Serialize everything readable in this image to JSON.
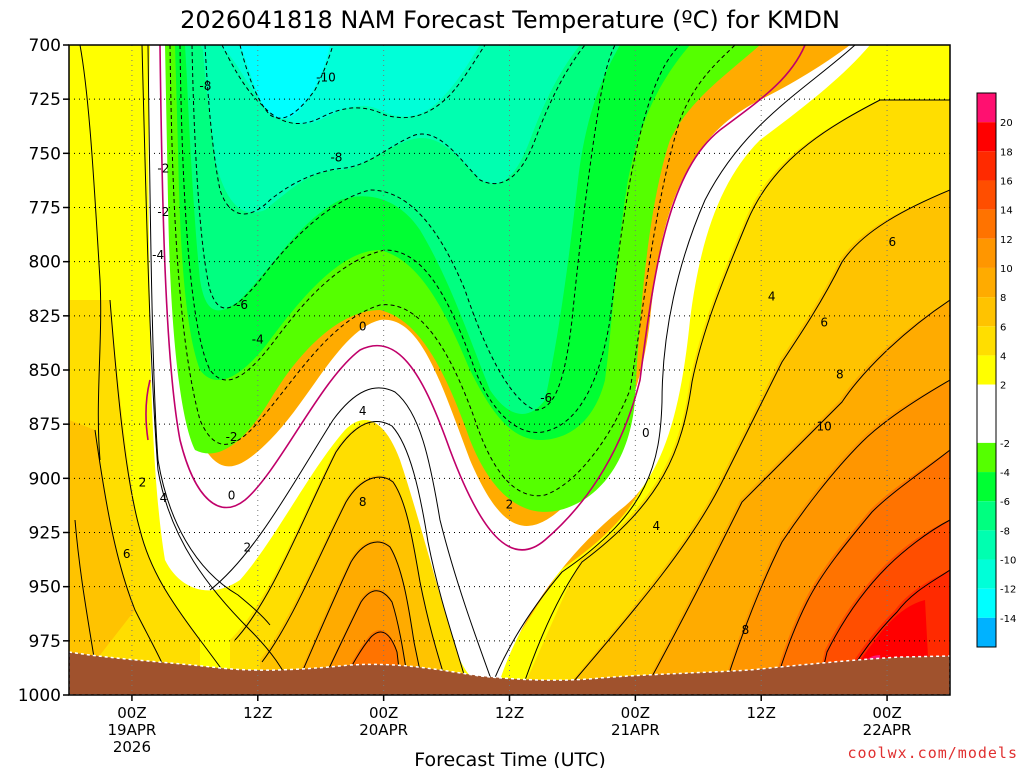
{
  "title": "2026041818 NAM Forecast Temperature (ºC) for KMDN",
  "credit": "coolwx.com/models",
  "chart_data": {
    "type": "heatmap",
    "title": "2026041818 NAM Forecast Temperature (ºC) for KMDN",
    "xlabel": "Forecast Time (UTC)",
    "ylabel": "",
    "x_range_hours": [
      0,
      84
    ],
    "y_range_hpa": [
      1000,
      700
    ],
    "y_ticks": [
      "700",
      "725",
      "750",
      "775",
      "800",
      "825",
      "850",
      "875",
      "900",
      "925",
      "950",
      "975",
      "1000"
    ],
    "x_ticks": [
      {
        "hour": 6,
        "lines": [
          "00Z",
          "19APR",
          "2026"
        ]
      },
      {
        "hour": 18,
        "lines": [
          "12Z"
        ]
      },
      {
        "hour": 30,
        "lines": [
          "00Z",
          "20APR"
        ]
      },
      {
        "hour": 42,
        "lines": [
          "12Z"
        ]
      },
      {
        "hour": 54,
        "lines": [
          "00Z",
          "21APR"
        ]
      },
      {
        "hour": 66,
        "lines": [
          "12Z"
        ]
      },
      {
        "hour": 78,
        "lines": [
          "00Z",
          "22APR"
        ]
      }
    ],
    "grid": true,
    "colorbar": {
      "position": "right",
      "labels": [
        "20",
        "18",
        "16",
        "14",
        "12",
        "10",
        "8",
        "6",
        "4",
        "2",
        "-2",
        "-4",
        "-6",
        "-8",
        "-10",
        "-12",
        "-14"
      ],
      "bands": [
        {
          "min": 20,
          "max": 22,
          "color": "#ff1070"
        },
        {
          "min": 18,
          "max": 20,
          "color": "#ff0000"
        },
        {
          "min": 16,
          "max": 18,
          "color": "#ff2a00"
        },
        {
          "min": 14,
          "max": 16,
          "color": "#ff4e00"
        },
        {
          "min": 12,
          "max": 14,
          "color": "#ff7300"
        },
        {
          "min": 10,
          "max": 12,
          "color": "#ff9600"
        },
        {
          "min": 8,
          "max": 10,
          "color": "#ffab00"
        },
        {
          "min": 6,
          "max": 8,
          "color": "#ffc300"
        },
        {
          "min": 4,
          "max": 6,
          "color": "#ffde00"
        },
        {
          "min": 2,
          "max": 4,
          "color": "#ffff00"
        },
        {
          "min": -2,
          "max": 2,
          "color": "#ffffff"
        },
        {
          "min": -4,
          "max": -2,
          "color": "#55ff00"
        },
        {
          "min": -6,
          "max": -4,
          "color": "#00ff33"
        },
        {
          "min": -8,
          "max": -6,
          "color": "#00ff80"
        },
        {
          "min": -10,
          "max": -8,
          "color": "#00ffb0"
        },
        {
          "min": -12,
          "max": -10,
          "color": "#00ffd8"
        },
        {
          "min": -14,
          "max": -12,
          "color": "#00ffff"
        },
        {
          "min": -16,
          "max": -14,
          "color": "#00b2ff"
        }
      ]
    },
    "contour_labels": [
      {
        "text": "-10",
        "hour": 24.5,
        "hpa": 715
      },
      {
        "text": "-8",
        "hour": 13.0,
        "hpa": 719
      },
      {
        "text": "-8",
        "hour": 25.5,
        "hpa": 752
      },
      {
        "text": "-2",
        "hour": 9.0,
        "hpa": 757
      },
      {
        "text": "-2",
        "hour": 9.0,
        "hpa": 777
      },
      {
        "text": "-4",
        "hour": 8.5,
        "hpa": 797
      },
      {
        "text": "-6",
        "hour": 16.5,
        "hpa": 820
      },
      {
        "text": "-4",
        "hour": 18.0,
        "hpa": 836
      },
      {
        "text": "0",
        "hour": 28.0,
        "hpa": 830
      },
      {
        "text": "-6",
        "hour": 45.5,
        "hpa": 863
      },
      {
        "text": "4",
        "hour": 28.0,
        "hpa": 869
      },
      {
        "text": "-2",
        "hour": 15.5,
        "hpa": 881
      },
      {
        "text": "0",
        "hour": 55.0,
        "hpa": 879
      },
      {
        "text": "2",
        "hour": 7.0,
        "hpa": 902
      },
      {
        "text": "0",
        "hour": 15.5,
        "hpa": 908
      },
      {
        "text": "4",
        "hour": 9.0,
        "hpa": 909
      },
      {
        "text": "8",
        "hour": 28.0,
        "hpa": 911
      },
      {
        "text": "2",
        "hour": 42.0,
        "hpa": 912
      },
      {
        "text": "4",
        "hour": 56.0,
        "hpa": 922
      },
      {
        "text": "2",
        "hour": 17.0,
        "hpa": 932
      },
      {
        "text": "6",
        "hour": 5.5,
        "hpa": 935
      },
      {
        "text": "4",
        "hour": 67.0,
        "hpa": 816
      },
      {
        "text": "6",
        "hour": 72.0,
        "hpa": 828
      },
      {
        "text": "6",
        "hour": 78.5,
        "hpa": 791
      },
      {
        "text": "8",
        "hour": 73.5,
        "hpa": 852
      },
      {
        "text": "10",
        "hour": 72.0,
        "hpa": 876
      },
      {
        "text": "8",
        "hour": 64.5,
        "hpa": 970
      }
    ]
  }
}
